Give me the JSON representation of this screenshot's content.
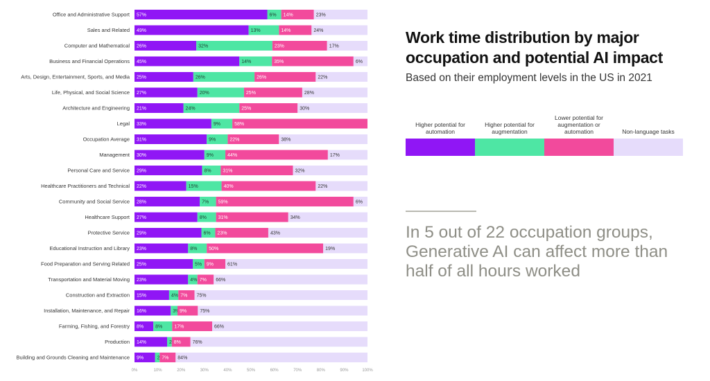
{
  "title": "Work time distribution by major occupation and potential AI impact",
  "subtitle": "Based on their employment levels in the US in 2021",
  "legend": [
    {
      "label": "Higher potential for automation",
      "color": "#9016f5"
    },
    {
      "label": "Higher potential for augmentation",
      "color": "#4ee6a4"
    },
    {
      "label": "Lower potential for augmentation or automation",
      "color": "#f24a9c"
    },
    {
      "label": "Non-language tasks",
      "color": "#e6dcfb"
    }
  ],
  "callout": "In 5 out of 22 occupation groups, Generative AI can affect more than half of all hours worked",
  "chart_data": {
    "type": "bar",
    "orientation": "horizontal",
    "stacked": true,
    "xlim": [
      0,
      100
    ],
    "x_ticks": [
      "0%",
      "10%",
      "20%",
      "30%",
      "40%",
      "50%",
      "60%",
      "70%",
      "80%",
      "90%",
      "100%"
    ],
    "categories": [
      "Office and Administrative Support",
      "Sales and Related",
      "Computer and Mathematical",
      "Business and Financial Operations",
      "Arts, Design, Entertainment, Sports, and Media",
      "Life, Physical, and Social Science",
      "Architecture and Engineering",
      "Legal",
      "Occupation Average",
      "Management",
      "Personal Care and Service",
      "Healthcare Practitioners and Technical",
      "Community and Social Service",
      "Healthcare Support",
      "Protective Service",
      "Educational Instruction and Library",
      "Food Preparation and Serving Related",
      "Transportation and Material Moving",
      "Construction and Extraction",
      "Installation, Maintenance, and Repair",
      "Farming, Fishing, and Forestry",
      "Production",
      "Building and Grounds Cleaning and Maintenance"
    ],
    "series": [
      {
        "name": "Higher potential for automation",
        "color": "#9016f5",
        "label_color": "#ffffff",
        "values": [
          57,
          49,
          26,
          45,
          25,
          27,
          21,
          33,
          31,
          30,
          29,
          22,
          28,
          27,
          29,
          23,
          25,
          23,
          15,
          16,
          8,
          14,
          9
        ]
      },
      {
        "name": "Higher potential for augmentation",
        "color": "#4ee6a4",
        "label_color": "#1f3d30",
        "values": [
          6,
          13,
          32,
          14,
          26,
          20,
          24,
          9,
          9,
          9,
          8,
          15,
          7,
          8,
          6,
          8,
          5,
          4,
          4,
          3,
          8,
          2,
          2
        ]
      },
      {
        "name": "Lower potential for augmentation or automation",
        "color": "#f24a9c",
        "label_color": "#ffffff",
        "values": [
          14,
          14,
          23,
          35,
          26,
          25,
          25,
          58,
          22,
          44,
          31,
          40,
          59,
          31,
          23,
          50,
          9,
          7,
          7,
          9,
          17,
          8,
          7
        ]
      },
      {
        "name": "Non-language tasks",
        "color": "#e6dcfb",
        "label_color": "#333333",
        "values": [
          23,
          24,
          17,
          6,
          22,
          28,
          30,
          0,
          38,
          17,
          32,
          22,
          6,
          34,
          43,
          19,
          61,
          66,
          75,
          75,
          66,
          76,
          84
        ]
      }
    ]
  }
}
